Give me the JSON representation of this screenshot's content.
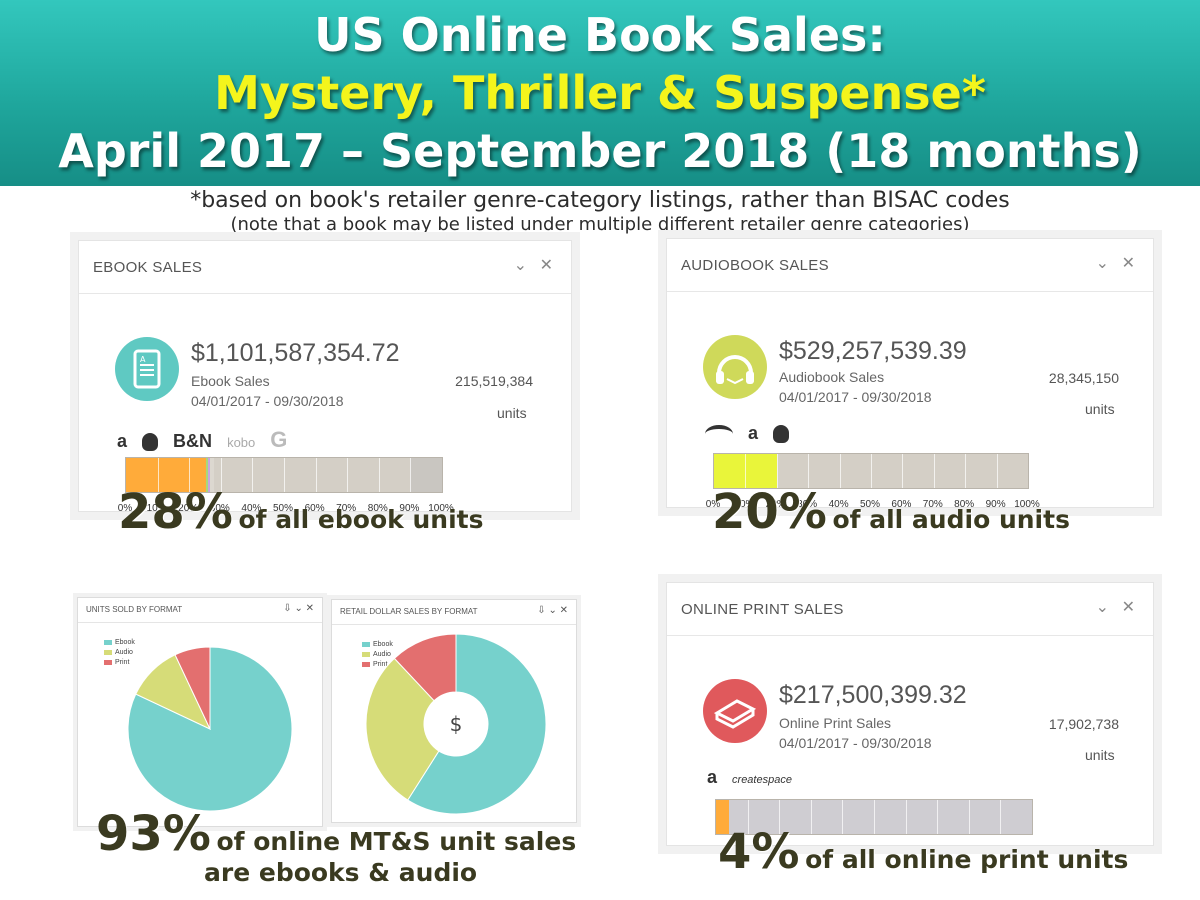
{
  "header": {
    "line1": "US Online Book Sales:",
    "line2": "Mystery, Thriller & Suspense*",
    "line3": "April 2017 – September 2018 (18 months)",
    "note1": "*based on book's retailer genre-category listings, rather than BISAC codes",
    "note2": "(note that a book may be listed under multiple different retailer genre categories)"
  },
  "ebook": {
    "title": "EBOOK SALES",
    "amount": "$1,101,587,354.72",
    "label": "Ebook Sales",
    "date": "04/01/2017 - 09/30/2018",
    "units": "215,519,384",
    "units_label": "units",
    "logos": [
      "a",
      "",
      "B&N",
      "kobo",
      "G"
    ],
    "big_pct": "28%",
    "big_text": "of all ebook units",
    "icon": "ebook-reader-icon"
  },
  "audio": {
    "title": "AUDIOBOOK SALES",
    "amount": "$529,257,539.39",
    "label": "Audiobook Sales",
    "date": "04/01/2017 - 09/30/2018",
    "units": "28,345,150",
    "units_label": "units",
    "logos": [
      "audible",
      "a",
      ""
    ],
    "big_pct": "20%",
    "big_text": "of all audio units",
    "icon": "headphones-book-icon"
  },
  "print": {
    "title": "ONLINE PRINT SALES",
    "amount": "$217,500,399.32",
    "label": "Online Print Sales",
    "date": "04/01/2017 - 09/30/2018",
    "units": "17,902,738",
    "units_label": "units",
    "logos": [
      "a",
      "createspace"
    ],
    "big_pct": "4%",
    "big_text": "of all online print units",
    "icon": "print-book-icon"
  },
  "pies": {
    "units_title": "UNITS SOLD BY FORMAT",
    "dollar_title": "RETAIL DOLLAR SALES BY FORMAT",
    "legend": [
      "Ebook",
      "Audio",
      "Print"
    ],
    "center_symbol": "$",
    "big_pct": "93%",
    "big_text1": "of online MT&S unit sales",
    "big_text2": "are ebooks & audio"
  },
  "colors": {
    "ebook": "#76d1cc",
    "audio": "#d6dc78",
    "print": "#e36f6f",
    "ebook_bar": "#ffab3a",
    "audio_bar": "#e9f53a",
    "print_bar": "#ffab3a"
  },
  "chart_data": [
    {
      "type": "bar",
      "orientation": "horizontal-stacked",
      "panel": "ebook",
      "x_ticks": [
        "0%",
        "10%",
        "20%",
        "30%",
        "40%",
        "50%",
        "60%",
        "70%",
        "80%",
        "90%",
        "100%"
      ],
      "xlim": [
        0,
        100
      ],
      "segments": [
        {
          "name": "",
          "value": 25.3,
          "color": "#ffab3a"
        },
        {
          "name": "",
          "value": 0.6,
          "color": "#a8d97a"
        },
        {
          "name": "",
          "value": 0.6,
          "color": "#c7a4e0"
        },
        {
          "name": "",
          "value": 1.5,
          "color": "#dcd8d0"
        },
        {
          "name": "",
          "value": 62.0,
          "color": "#d4cfc6"
        },
        {
          "name": "",
          "value": 10.0,
          "color": "#c9c6c1"
        }
      ]
    },
    {
      "type": "bar",
      "orientation": "horizontal-stacked",
      "panel": "audio",
      "x_ticks": [
        "0%",
        "10%",
        "20%",
        "30%",
        "40%",
        "50%",
        "60%",
        "70%",
        "80%",
        "90%",
        "100%"
      ],
      "xlim": [
        0,
        100
      ],
      "segments": [
        {
          "name": "",
          "value": 20,
          "color": "#e9f53a"
        },
        {
          "name": "",
          "value": 80,
          "color": "#d4cfc6"
        }
      ]
    },
    {
      "type": "bar",
      "orientation": "horizontal-stacked",
      "panel": "print",
      "x_ticks": [],
      "xlim": [
        0,
        100
      ],
      "segments": [
        {
          "name": "",
          "value": 4,
          "color": "#ffab3a"
        },
        {
          "name": "",
          "value": 96,
          "color": "#cfcdd2"
        }
      ]
    },
    {
      "type": "pie",
      "title": "UNITS SOLD BY FORMAT",
      "labels": [
        "Ebook",
        "Audio",
        "Print"
      ],
      "values": [
        82,
        11,
        7
      ],
      "colors": [
        "#76d1cc",
        "#d6dc78",
        "#e36f6f"
      ]
    },
    {
      "type": "pie",
      "donut": true,
      "title": "RETAIL DOLLAR SALES BY FORMAT",
      "labels": [
        "Ebook",
        "Audio",
        "Print"
      ],
      "values": [
        59,
        29,
        12
      ],
      "colors": [
        "#76d1cc",
        "#d6dc78",
        "#e36f6f"
      ]
    }
  ]
}
